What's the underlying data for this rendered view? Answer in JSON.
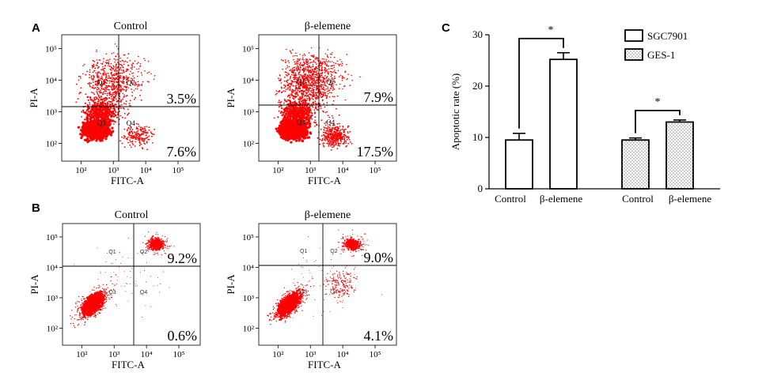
{
  "panels": {
    "A": "A",
    "B": "B",
    "C": "C"
  },
  "flow_plots": [
    {
      "id": "A-control",
      "title": "Control",
      "xlabel": "FITC-A",
      "ylabel": "PI-A",
      "quadrants": [
        "Q1",
        "Q2",
        "Q3",
        "Q4"
      ],
      "upper_pct": "3.5%",
      "lower_pct": "7.6%",
      "xticks": [
        "10²",
        "10³",
        "10⁴",
        "10⁵"
      ],
      "yticks": [
        "10²",
        "10³",
        "10⁴",
        "10⁵"
      ]
    },
    {
      "id": "A-elemene",
      "title": "β-elemene",
      "xlabel": "FITC-A",
      "ylabel": "PI-A",
      "quadrants": [
        "Q1",
        "Q2",
        "Q3",
        "Q4"
      ],
      "upper_pct": "7.9%",
      "lower_pct": "17.5%",
      "xticks": [
        "10²",
        "10³",
        "10⁴",
        "10⁵"
      ],
      "yticks": [
        "10²",
        "10³",
        "10⁴",
        "10⁵"
      ]
    },
    {
      "id": "B-control",
      "title": "Control",
      "xlabel": "FITC-A",
      "ylabel": "PI-A",
      "quadrants": [
        "Q1",
        "Q2",
        "Q3",
        "Q4"
      ],
      "upper_pct": "9.2%",
      "lower_pct": "0.6%",
      "xticks": [
        "10²",
        "10³",
        "10⁴",
        "10⁵"
      ],
      "yticks": [
        "10²",
        "10³",
        "10⁴",
        "10⁵"
      ]
    },
    {
      "id": "B-elemene",
      "title": "β-elemene",
      "xlabel": "FITC-A",
      "ylabel": "PI-A",
      "quadrants": [
        "Q1",
        "Q2",
        "Q3",
        "Q4"
      ],
      "upper_pct": "9.0%",
      "lower_pct": "4.1%",
      "xticks": [
        "10²",
        "10³",
        "10⁴",
        "10⁵"
      ],
      "yticks": [
        "10²",
        "10³",
        "10⁴",
        "10⁵"
      ]
    }
  ],
  "chart_data": {
    "type": "bar",
    "title": "",
    "xlabel": "",
    "ylabel": "Apoptotic rate (%)",
    "ylim": [
      0,
      30
    ],
    "yticks": [
      0,
      10,
      20,
      30
    ],
    "groups": [
      {
        "series": "SGC7901",
        "categories": [
          "Control",
          "β-elemene"
        ],
        "values": [
          9.5,
          25.2
        ],
        "errors": [
          1.3,
          1.3
        ],
        "significance": "*"
      },
      {
        "series": "GES-1",
        "categories": [
          "Control",
          "β-elemene"
        ],
        "values": [
          9.5,
          13.0
        ],
        "errors": [
          0.4,
          0.4
        ],
        "significance": "*"
      }
    ],
    "legend": {
      "position": "top-right",
      "entries": [
        "SGC7901",
        "GES-1"
      ]
    },
    "colors": {
      "bar_edge": "#000000",
      "sgc_fill": "#ffffff",
      "ges_fill": "dotted"
    }
  },
  "colors": {
    "dots": "#ff0000",
    "axes": "#000000"
  }
}
